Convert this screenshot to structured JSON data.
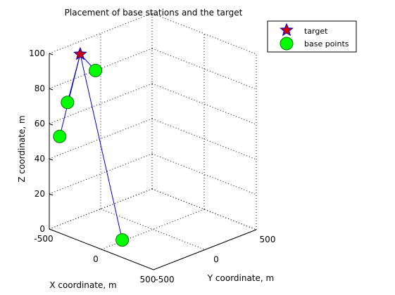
{
  "chart_data": {
    "type": "scatter",
    "title": "Placement of base stations and the target",
    "xlabel": "X coordinate, m",
    "ylabel": "Y coordinate, m",
    "zlabel": "Z coordinate, m",
    "x_ticks": [
      "-500",
      "0",
      "500"
    ],
    "y_ticks": [
      "-500",
      "0",
      "500"
    ],
    "z_ticks": [
      "0",
      "20",
      "40",
      "60",
      "80",
      "100"
    ],
    "xlim": [
      -500,
      500
    ],
    "ylim": [
      -500,
      500
    ],
    "zlim": [
      0,
      100
    ],
    "grid": true,
    "legend_position": "top-right",
    "target": {
      "name": "target",
      "color": "#cc0000",
      "point": [
        -450,
        -250,
        95
      ]
    },
    "base_points": {
      "name": "base points",
      "color": "#00ff00",
      "points": [
        [
          -350,
          -475,
          75
        ],
        [
          -500,
          -50,
          80
        ],
        [
          -400,
          -500,
          55
        ],
        [
          200,
          -500,
          10
        ]
      ]
    },
    "line_color": "#0000cc"
  }
}
